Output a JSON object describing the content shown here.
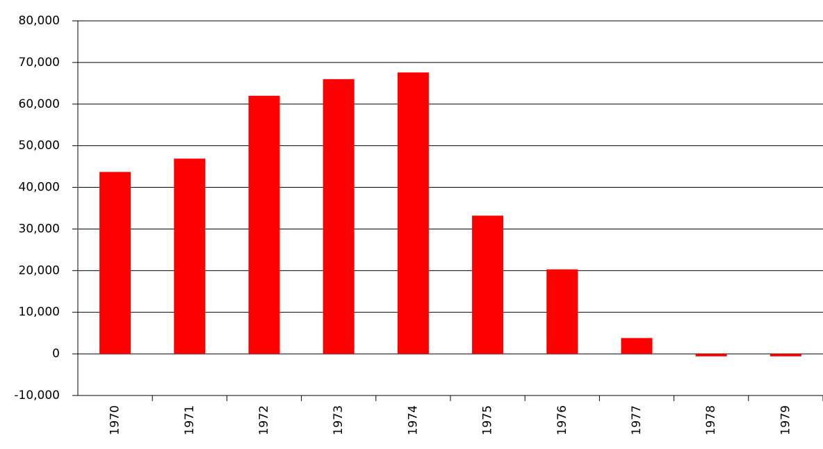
{
  "chart_data": {
    "type": "bar",
    "categories": [
      "1970",
      "1971",
      "1972",
      "1973",
      "1974",
      "1975",
      "1976",
      "1977",
      "1978",
      "1979"
    ],
    "values": [
      43700,
      46900,
      62000,
      66000,
      67600,
      33200,
      20300,
      3800,
      -600,
      -600
    ],
    "color": "#ff0000",
    "ylim": [
      -10000,
      80000
    ],
    "yticks": [
      {
        "value": -10000,
        "label": "-10,000"
      },
      0,
      {
        "value": 10000,
        "label": "10,000"
      },
      {
        "value": 20000,
        "label": "20,000"
      },
      {
        "value": 30000,
        "label": "30,000"
      },
      {
        "value": 40000,
        "label": "40,000"
      },
      {
        "value": 50000,
        "label": "50,000"
      },
      {
        "value": 60000,
        "label": "60,000"
      },
      {
        "value": 70000,
        "label": "70,000"
      },
      {
        "value": 80000,
        "label": "80,000"
      }
    ],
    "grid": true
  }
}
